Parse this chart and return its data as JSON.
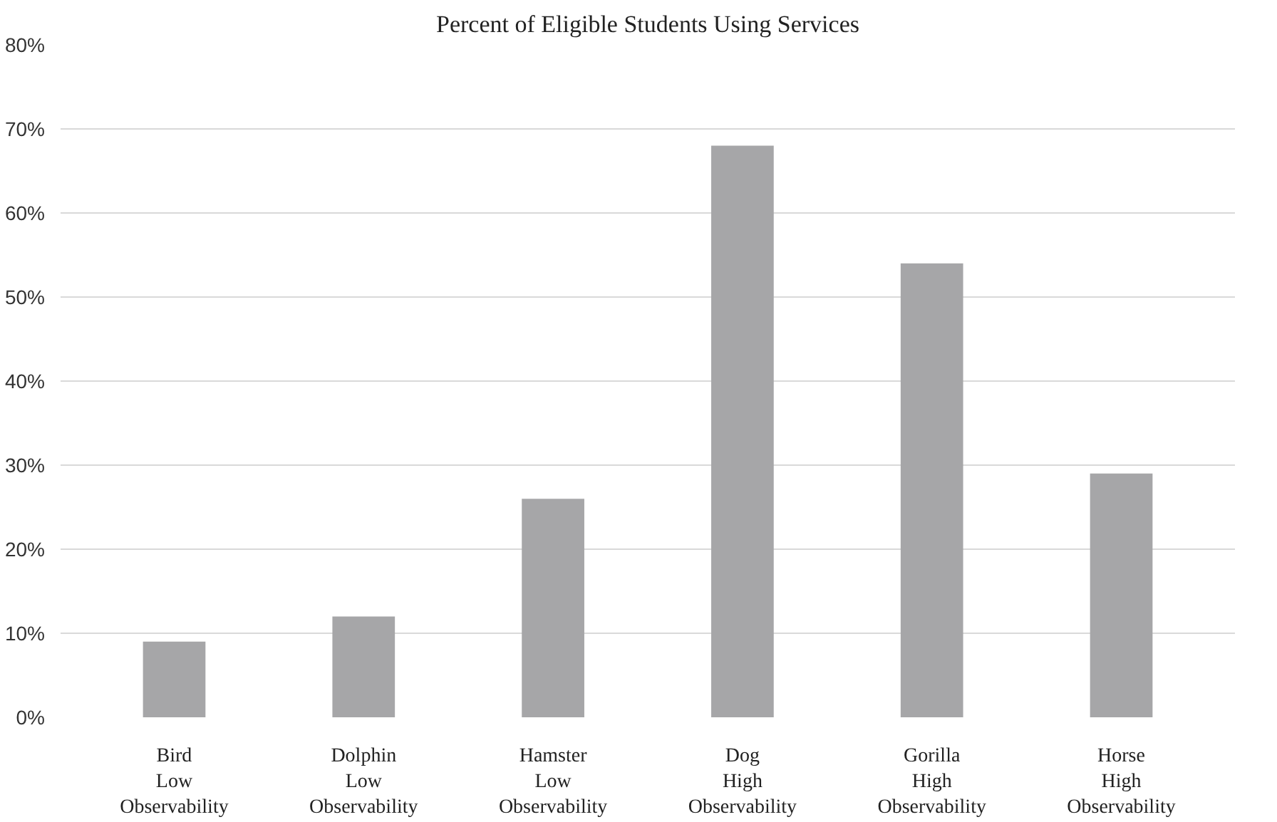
{
  "chart_data": {
    "type": "bar",
    "title": "Percent of Eligible Students Using Services",
    "categories": [
      "Bird\nLow\nObservability",
      "Dolphin\nLow\nObservability",
      "Hamster\nLow\nObservability",
      "Dog\nHigh\nObservability",
      "Gorilla\nHigh\nObservability",
      "Horse\nHigh\nObservability"
    ],
    "values": [
      9,
      12,
      26,
      68,
      54,
      29
    ],
    "color": "#a6a6a8",
    "ylim": [
      0,
      80
    ],
    "yticks": [
      {
        "value": 0,
        "label": "0%"
      },
      {
        "value": 10,
        "label": "10%"
      },
      {
        "value": 20,
        "label": "20%"
      },
      {
        "value": 30,
        "label": "30%"
      },
      {
        "value": 40,
        "label": "40%"
      },
      {
        "value": 50,
        "label": "50%"
      },
      {
        "value": 60,
        "label": "60%"
      },
      {
        "value": 70,
        "label": "70%"
      },
      {
        "value": 80,
        "label": "80%"
      }
    ],
    "grid": "y"
  }
}
